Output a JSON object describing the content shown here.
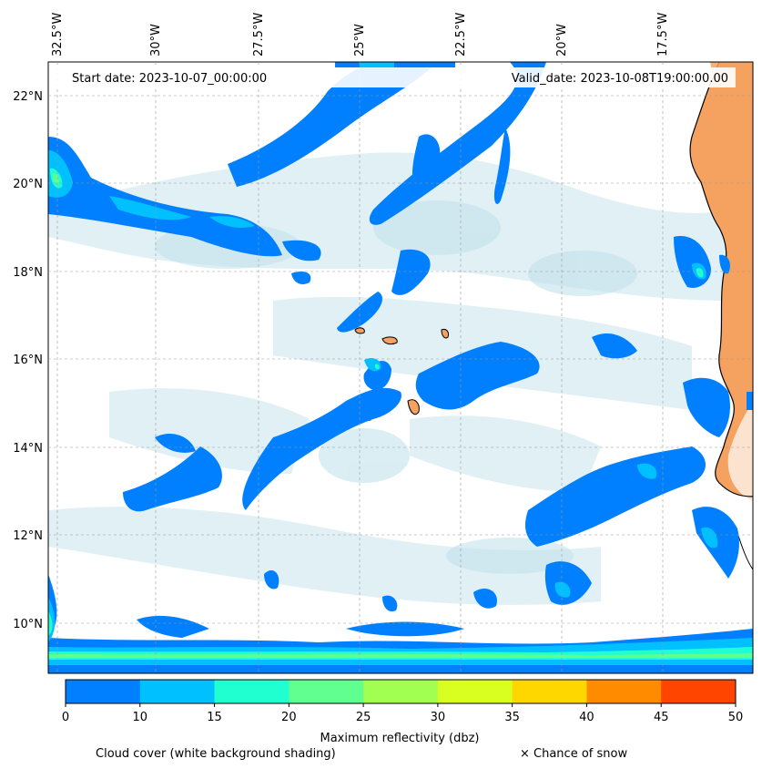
{
  "map": {
    "lon_ticks": [
      "32.5°W",
      "30°W",
      "27.5°W",
      "25°W",
      "22.5°W",
      "20°W",
      "17.5°W"
    ],
    "lat_ticks": [
      "22°N",
      "20°N",
      "18°N",
      "16°N",
      "14°N",
      "12°N",
      "10°N"
    ],
    "start_date": "Start date: 2023-10-07_00:00:00",
    "valid_date": "Valid_date: 2023-10-08T19:00:00.00",
    "land_color": "#f5a261",
    "sea_background": "#ffffff"
  },
  "colorbar": {
    "ticks": [
      "0",
      "10",
      "15",
      "20",
      "25",
      "30",
      "35",
      "40",
      "45",
      "50"
    ],
    "colors": [
      "#0080ff",
      "#00c0ff",
      "#20ffd0",
      "#60ff90",
      "#a0ff50",
      "#d8ff20",
      "#ffd700",
      "#ff8c00",
      "#ff4500"
    ],
    "label": "Maximum reflectivity (dbz)"
  },
  "legend": {
    "cloud_cover": "Cloud cover (white background shading)",
    "snow": "× Chance of snow"
  }
}
